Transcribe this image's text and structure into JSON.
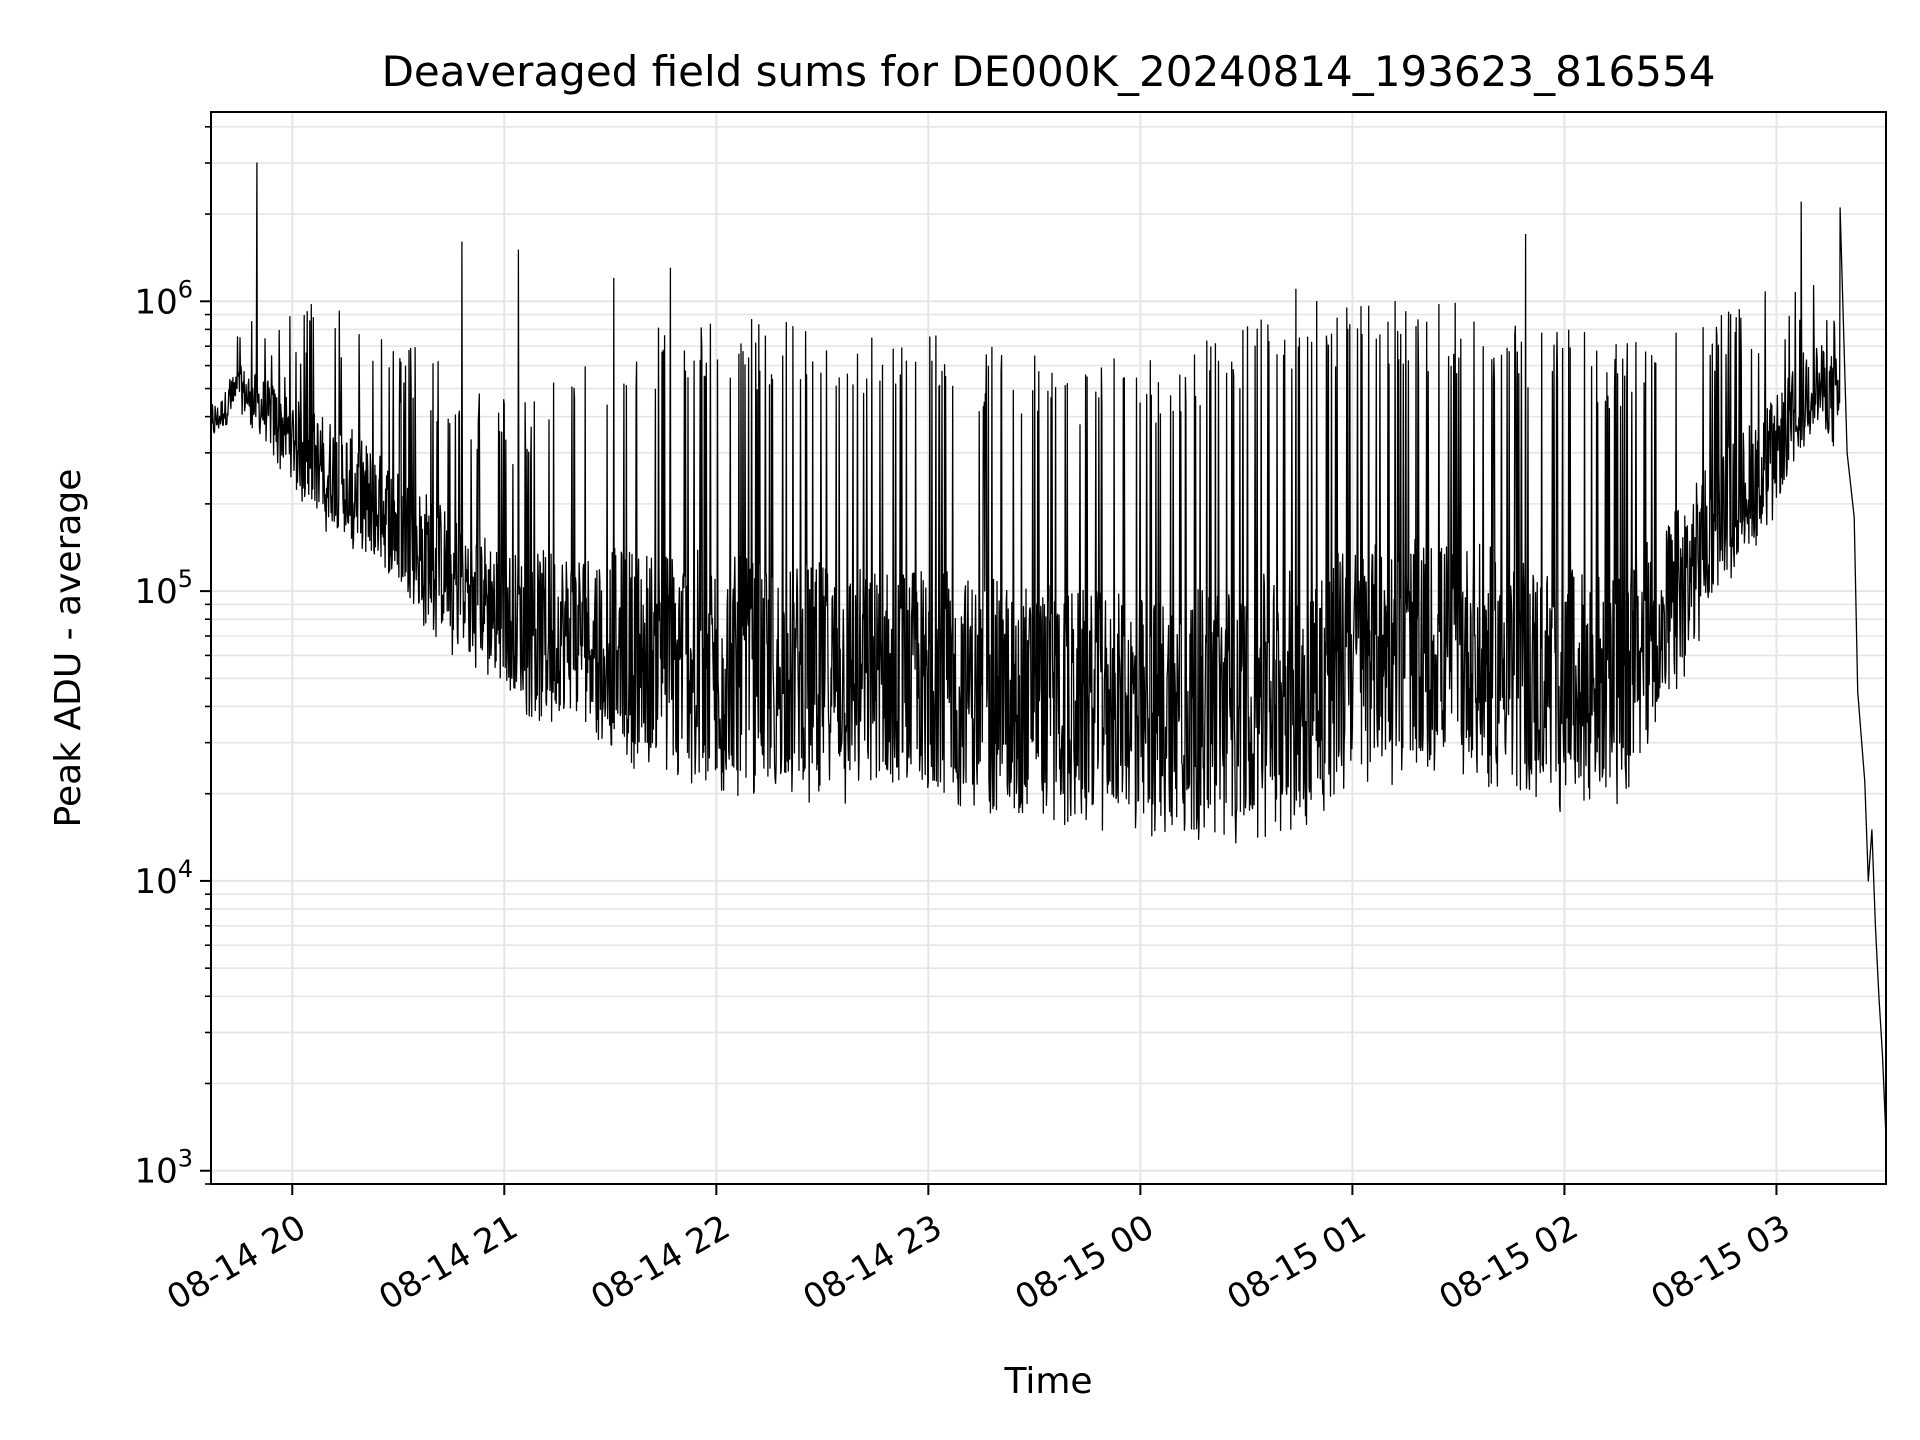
{
  "chart_data": {
    "type": "line",
    "title": "Deaveraged field sums for DE000K_20240814_193623_816554",
    "xlabel": "Time",
    "ylabel": "Peak ADU - average",
    "yscale": "log",
    "xlim": [
      "2024-08-14T19:37",
      "2024-08-15T03:31"
    ],
    "ylim": [
      900,
      4500000
    ],
    "grid": true,
    "line_color": "#000000",
    "grid_color": "#e5e5e5",
    "x_ticks": [
      {
        "value": "2024-08-14T20:00",
        "label": "08-14 20"
      },
      {
        "value": "2024-08-14T21:00",
        "label": "08-14 21"
      },
      {
        "value": "2024-08-14T22:00",
        "label": "08-14 22"
      },
      {
        "value": "2024-08-14T23:00",
        "label": "08-14 23"
      },
      {
        "value": "2024-08-15T00:00",
        "label": "08-15 00"
      },
      {
        "value": "2024-08-15T01:00",
        "label": "08-15 01"
      },
      {
        "value": "2024-08-15T02:00",
        "label": "08-15 02"
      },
      {
        "value": "2024-08-15T03:00",
        "label": "08-15 03"
      }
    ],
    "y_ticks": [
      {
        "value": 1000,
        "base": "10",
        "exp": "3"
      },
      {
        "value": 10000,
        "base": "10",
        "exp": "4"
      },
      {
        "value": 100000,
        "base": "10",
        "exp": "5"
      },
      {
        "value": 1000000,
        "base": "10",
        "exp": "6"
      }
    ],
    "envelope": [
      {
        "x": "2024-08-14T19:37",
        "low": 320000,
        "high": 500000
      },
      {
        "x": "2024-08-14T19:45",
        "low": 400000,
        "high": 900000
      },
      {
        "x": "2024-08-14T19:55",
        "low": 280000,
        "high": 950000
      },
      {
        "x": "2024-08-14T20:05",
        "low": 180000,
        "high": 1000000
      },
      {
        "x": "2024-08-14T20:15",
        "low": 140000,
        "high": 1000000
      },
      {
        "x": "2024-08-14T20:25",
        "low": 110000,
        "high": 800000
      },
      {
        "x": "2024-08-14T20:35",
        "low": 80000,
        "high": 700000
      },
      {
        "x": "2024-08-14T20:45",
        "low": 60000,
        "high": 600000
      },
      {
        "x": "2024-08-14T20:55",
        "low": 50000,
        "high": 500000
      },
      {
        "x": "2024-08-14T21:05",
        "low": 38000,
        "high": 450000
      },
      {
        "x": "2024-08-14T21:15",
        "low": 33000,
        "high": 600000
      },
      {
        "x": "2024-08-14T21:25",
        "low": 32000,
        "high": 600000
      },
      {
        "x": "2024-08-14T21:35",
        "low": 25000,
        "high": 800000
      },
      {
        "x": "2024-08-14T21:45",
        "low": 22000,
        "high": 900000
      },
      {
        "x": "2024-08-14T22:00",
        "low": 20000,
        "high": 900000
      },
      {
        "x": "2024-08-14T22:15",
        "low": 18000,
        "high": 850000
      },
      {
        "x": "2024-08-14T22:30",
        "low": 18000,
        "high": 850000
      },
      {
        "x": "2024-08-14T22:45",
        "low": 18000,
        "high": 800000
      },
      {
        "x": "2024-08-14T23:00",
        "low": 18000,
        "high": 800000
      },
      {
        "x": "2024-08-14T23:15",
        "low": 17000,
        "high": 700000
      },
      {
        "x": "2024-08-14T23:30",
        "low": 16000,
        "high": 700000
      },
      {
        "x": "2024-08-14T23:45",
        "low": 15000,
        "high": 650000
      },
      {
        "x": "2024-08-15T00:00",
        "low": 14000,
        "high": 650000
      },
      {
        "x": "2024-08-15T00:15",
        "low": 14000,
        "high": 700000
      },
      {
        "x": "2024-08-15T00:30",
        "low": 13000,
        "high": 900000
      },
      {
        "x": "2024-08-15T00:45",
        "low": 15000,
        "high": 1000000
      },
      {
        "x": "2024-08-15T01:00",
        "low": 20000,
        "high": 1000000
      },
      {
        "x": "2024-08-15T01:15",
        "low": 22000,
        "high": 1000000
      },
      {
        "x": "2024-08-15T01:30",
        "low": 22000,
        "high": 1000000
      },
      {
        "x": "2024-08-15T01:45",
        "low": 20000,
        "high": 900000
      },
      {
        "x": "2024-08-15T02:00",
        "low": 17000,
        "high": 800000
      },
      {
        "x": "2024-08-15T02:15",
        "low": 17000,
        "high": 750000
      },
      {
        "x": "2024-08-15T02:30",
        "low": 40000,
        "high": 800000
      },
      {
        "x": "2024-08-15T02:45",
        "low": 100000,
        "high": 1000000
      },
      {
        "x": "2024-08-15T03:00",
        "low": 180000,
        "high": 1200000
      },
      {
        "x": "2024-08-15T03:10",
        "low": 350000,
        "high": 1600000
      },
      {
        "x": "2024-08-15T03:18",
        "low": 300000,
        "high": 1300000
      }
    ],
    "spikes": [
      {
        "x": "2024-08-14T19:50",
        "y": 3000000
      },
      {
        "x": "2024-08-14T20:48",
        "y": 1600000
      },
      {
        "x": "2024-08-14T21:04",
        "y": 1500000
      },
      {
        "x": "2024-08-14T21:31",
        "y": 1200000
      },
      {
        "x": "2024-08-14T21:47",
        "y": 1300000
      },
      {
        "x": "2024-08-15T00:44",
        "y": 1100000
      },
      {
        "x": "2024-08-15T01:49",
        "y": 1700000
      },
      {
        "x": "2024-08-15T03:07",
        "y": 2200000
      },
      {
        "x": "2024-08-15T03:18",
        "y": 2100000
      }
    ],
    "drop_tail": [
      {
        "x": "2024-08-15T03:20",
        "y": 300000
      },
      {
        "x": "2024-08-15T03:22",
        "y": 180000
      },
      {
        "x": "2024-08-15T03:23",
        "y": 45000
      },
      {
        "x": "2024-08-15T03:25",
        "y": 22000
      },
      {
        "x": "2024-08-15T03:26",
        "y": 10000
      },
      {
        "x": "2024-08-15T03:27",
        "y": 15000
      },
      {
        "x": "2024-08-15T03:28",
        "y": 7000
      },
      {
        "x": "2024-08-15T03:29",
        "y": 4000
      },
      {
        "x": "2024-08-15T03:30",
        "y": 2500
      },
      {
        "x": "2024-08-15T03:31",
        "y": 1300
      }
    ]
  }
}
